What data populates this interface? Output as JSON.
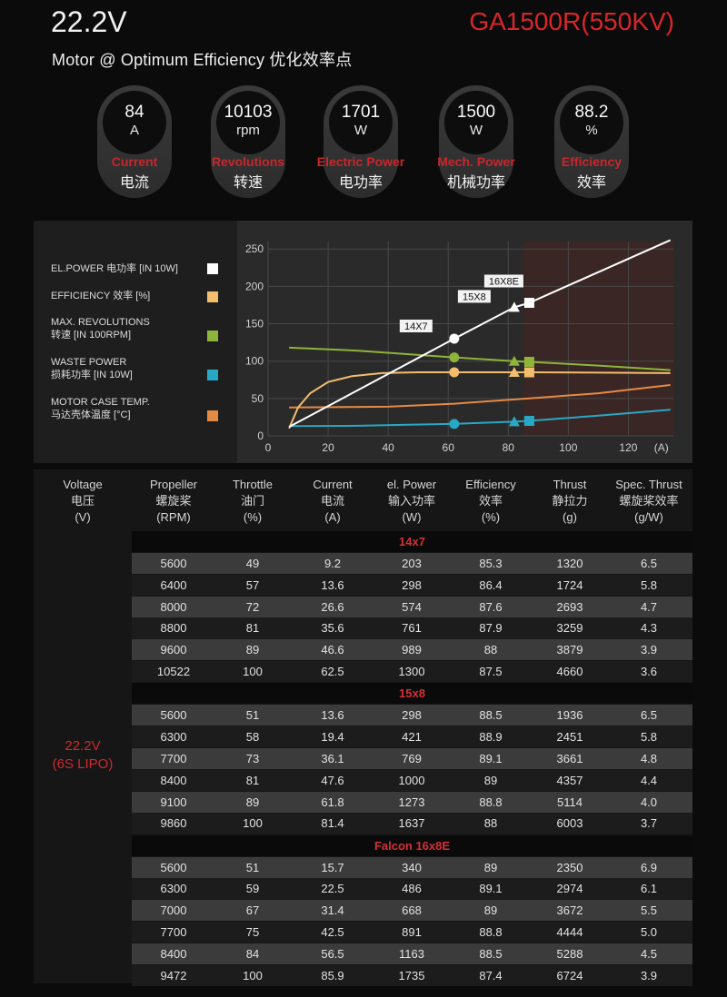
{
  "header": {
    "voltage": "22.2V",
    "subtitle": "Motor @ Optimum Efficiency  优化效率点",
    "model": "GA1500R(550KV)"
  },
  "stats": [
    {
      "value": "84",
      "unit": "A",
      "label_en": "Current",
      "label_zh": "电流"
    },
    {
      "value": "10103",
      "unit": "rpm",
      "label_en": "Revolutions",
      "label_zh": "转速"
    },
    {
      "value": "1701",
      "unit": "W",
      "label_en": "Electric Power",
      "label_zh": "电功率"
    },
    {
      "value": "1500",
      "unit": "W",
      "label_en": "Mech. Power",
      "label_zh": "机械功率"
    },
    {
      "value": "88.2",
      "unit": "%",
      "label_en": "Efficiency",
      "label_zh": "效率"
    }
  ],
  "legend": [
    {
      "line1": "EL.POWER 电功率 [IN 10W]",
      "line2": "",
      "color": "#ffffff"
    },
    {
      "line1": "EFFICIENCY 效率 [%]",
      "line2": "",
      "color": "#f2be6e"
    },
    {
      "line1": "MAX. REVOLUTIONS",
      "line2": "转速 [IN 100RPM]",
      "color": "#8fb43a"
    },
    {
      "line1": "WASTE POWER",
      "line2": "损耗功率 [IN 10W]",
      "color": "#29a8c6"
    },
    {
      "line1": "MOTOR CASE TEMP.",
      "line2": "马达壳体温度 [°C]",
      "color": "#e58a45"
    }
  ],
  "chart_data": {
    "type": "line",
    "xlim": [
      0,
      135
    ],
    "ylim": [
      0,
      260
    ],
    "xticks": [
      "0",
      "20",
      "40",
      "60",
      "80",
      "100",
      "120"
    ],
    "yticks": [
      "0",
      "50",
      "100",
      "150",
      "200",
      "250"
    ],
    "x_unit": "(A)",
    "grid": true,
    "shaded_region_x": [
      85,
      135
    ],
    "series": [
      {
        "name": "EL.POWER 电功率 [IN 10W]",
        "color": "#ffffff",
        "points": [
          [
            7,
            12
          ],
          [
            62,
            130
          ],
          [
            82,
            172
          ],
          [
            87,
            178
          ],
          [
            134,
            262
          ]
        ]
      },
      {
        "name": "EFFICIENCY 效率 [%]",
        "color": "#f2be6e",
        "points": [
          [
            7,
            10
          ],
          [
            10,
            38
          ],
          [
            14,
            57
          ],
          [
            20,
            72
          ],
          [
            28,
            80
          ],
          [
            38,
            84
          ],
          [
            50,
            85
          ],
          [
            62,
            85
          ],
          [
            82,
            85
          ],
          [
            87,
            85
          ],
          [
            110,
            84.5
          ],
          [
            134,
            84
          ]
        ]
      },
      {
        "name": "MAX. REVOLUTIONS 转速 [IN 100RPM]",
        "color": "#8fb43a",
        "points": [
          [
            7,
            118
          ],
          [
            30,
            114
          ],
          [
            62,
            105
          ],
          [
            82,
            100
          ],
          [
            87,
            99
          ],
          [
            110,
            94
          ],
          [
            134,
            88
          ]
        ]
      },
      {
        "name": "WASTE POWER 损耗功率 [IN 10W]",
        "color": "#29a8c6",
        "points": [
          [
            7,
            13
          ],
          [
            30,
            13.5
          ],
          [
            62,
            16
          ],
          [
            82,
            19
          ],
          [
            87,
            20
          ],
          [
            110,
            27
          ],
          [
            134,
            35
          ]
        ]
      },
      {
        "name": "MOTOR CASE TEMP. 马达壳体温度 [°C]",
        "color": "#e58a45",
        "points": [
          [
            7,
            38
          ],
          [
            40,
            39
          ],
          [
            62,
            43
          ],
          [
            87,
            50
          ],
          [
            110,
            57
          ],
          [
            134,
            68
          ]
        ]
      }
    ],
    "markers": [
      {
        "label": "14X7",
        "x": 62,
        "shape": "circle",
        "values": {
          "power": 130,
          "efficiency": 85,
          "revolutions": 105,
          "waste": 16
        }
      },
      {
        "label": "15X8",
        "x": 82,
        "shape": "triangle",
        "values": {
          "power": 172,
          "efficiency": 85,
          "revolutions": 100,
          "waste": 19
        }
      },
      {
        "label": "16X8E",
        "x": 87,
        "shape": "square",
        "values": {
          "power": 178,
          "efficiency": 85,
          "revolutions": 99,
          "waste": 20
        }
      }
    ]
  },
  "table": {
    "headers": [
      {
        "en": "Voltage",
        "zh": "电压",
        "unit": "(V)"
      },
      {
        "en": "Propeller",
        "zh": "螺旋桨",
        "unit": "(RPM)"
      },
      {
        "en": "Throttle",
        "zh": "油门",
        "unit": "(%)"
      },
      {
        "en": "Current",
        "zh": "电流",
        "unit": "(A)"
      },
      {
        "en": "el. Power",
        "zh": "输入功率",
        "unit": "(W)"
      },
      {
        "en": "Efficiency",
        "zh": "效率",
        "unit": "(%)"
      },
      {
        "en": "Thrust",
        "zh": "静拉力",
        "unit": "(g)"
      },
      {
        "en": "Spec. Thrust",
        "zh": "螺旋桨效率",
        "unit": "(g/W)"
      }
    ],
    "voltage_line1": "22.2V",
    "voltage_line2": "(6S LIPO)",
    "groups": [
      {
        "name": "14x7",
        "rows": [
          [
            "5600",
            "49",
            "9.2",
            "203",
            "85.3",
            "1320",
            "6.5"
          ],
          [
            "6400",
            "57",
            "13.6",
            "298",
            "86.4",
            "1724",
            "5.8"
          ],
          [
            "8000",
            "72",
            "26.6",
            "574",
            "87.6",
            "2693",
            "4.7"
          ],
          [
            "8800",
            "81",
            "35.6",
            "761",
            "87.9",
            "3259",
            "4.3"
          ],
          [
            "9600",
            "89",
            "46.6",
            "989",
            "88",
            "3879",
            "3.9"
          ],
          [
            "10522",
            "100",
            "62.5",
            "1300",
            "87.5",
            "4660",
            "3.6"
          ]
        ]
      },
      {
        "name": "15x8",
        "rows": [
          [
            "5600",
            "51",
            "13.6",
            "298",
            "88.5",
            "1936",
            "6.5"
          ],
          [
            "6300",
            "58",
            "19.4",
            "421",
            "88.9",
            "2451",
            "5.8"
          ],
          [
            "7700",
            "73",
            "36.1",
            "769",
            "89.1",
            "3661",
            "4.8"
          ],
          [
            "8400",
            "81",
            "47.6",
            "1000",
            "89",
            "4357",
            "4.4"
          ],
          [
            "9100",
            "89",
            "61.8",
            "1273",
            "88.8",
            "5114",
            "4.0"
          ],
          [
            "9860",
            "100",
            "81.4",
            "1637",
            "88",
            "6003",
            "3.7"
          ]
        ]
      },
      {
        "name": "Falcon 16x8E",
        "rows": [
          [
            "5600",
            "51",
            "15.7",
            "340",
            "89",
            "2350",
            "6.9"
          ],
          [
            "6300",
            "59",
            "22.5",
            "486",
            "89.1",
            "2974",
            "6.1"
          ],
          [
            "7000",
            "67",
            "31.4",
            "668",
            "89",
            "3672",
            "5.5"
          ],
          [
            "7700",
            "75",
            "42.5",
            "891",
            "88.8",
            "4444",
            "5.0"
          ],
          [
            "8400",
            "84",
            "56.5",
            "1163",
            "88.5",
            "5288",
            "4.5"
          ],
          [
            "9472",
            "100",
            "85.9",
            "1735",
            "87.4",
            "6724",
            "3.9"
          ]
        ]
      }
    ]
  }
}
